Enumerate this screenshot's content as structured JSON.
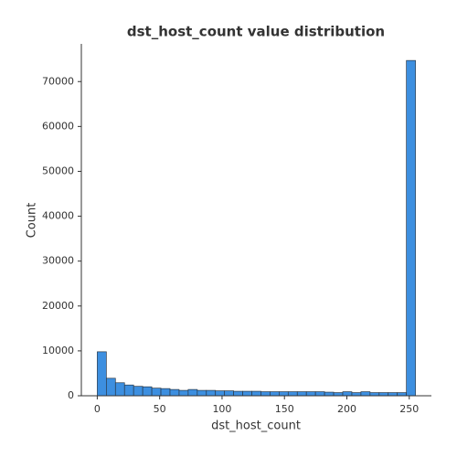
{
  "chart_data": {
    "type": "histogram",
    "title": "dst_host_count value distribution",
    "xlabel": "dst_host_count",
    "ylabel": "Count",
    "color": "#3d8fe0",
    "bins": [
      0,
      7.29,
      14.57,
      21.86,
      29.14,
      36.43,
      43.71,
      51,
      58.29,
      65.57,
      72.86,
      80.14,
      87.43,
      94.71,
      102,
      109.29,
      116.57,
      123.86,
      131.14,
      138.43,
      145.71,
      153,
      160.29,
      167.57,
      174.86,
      182.14,
      189.43,
      196.71,
      204,
      211.29,
      218.57,
      225.86,
      233.14,
      240.43,
      247.71,
      255
    ],
    "values": [
      9800,
      3900,
      2900,
      2400,
      2100,
      2000,
      1700,
      1600,
      1400,
      1200,
      1400,
      1200,
      1200,
      1100,
      1100,
      1000,
      1000,
      1000,
      900,
      900,
      900,
      900,
      900,
      900,
      900,
      800,
      700,
      900,
      700,
      900,
      700,
      700,
      700,
      700,
      74700
    ],
    "xlim": [
      -12.75,
      267.75
    ],
    "xticks": [
      0,
      50,
      100,
      150,
      200,
      250
    ],
    "ylim": [
      0,
      78400
    ],
    "yticks": [
      0,
      10000,
      20000,
      30000,
      40000,
      50000,
      60000,
      70000
    ]
  }
}
